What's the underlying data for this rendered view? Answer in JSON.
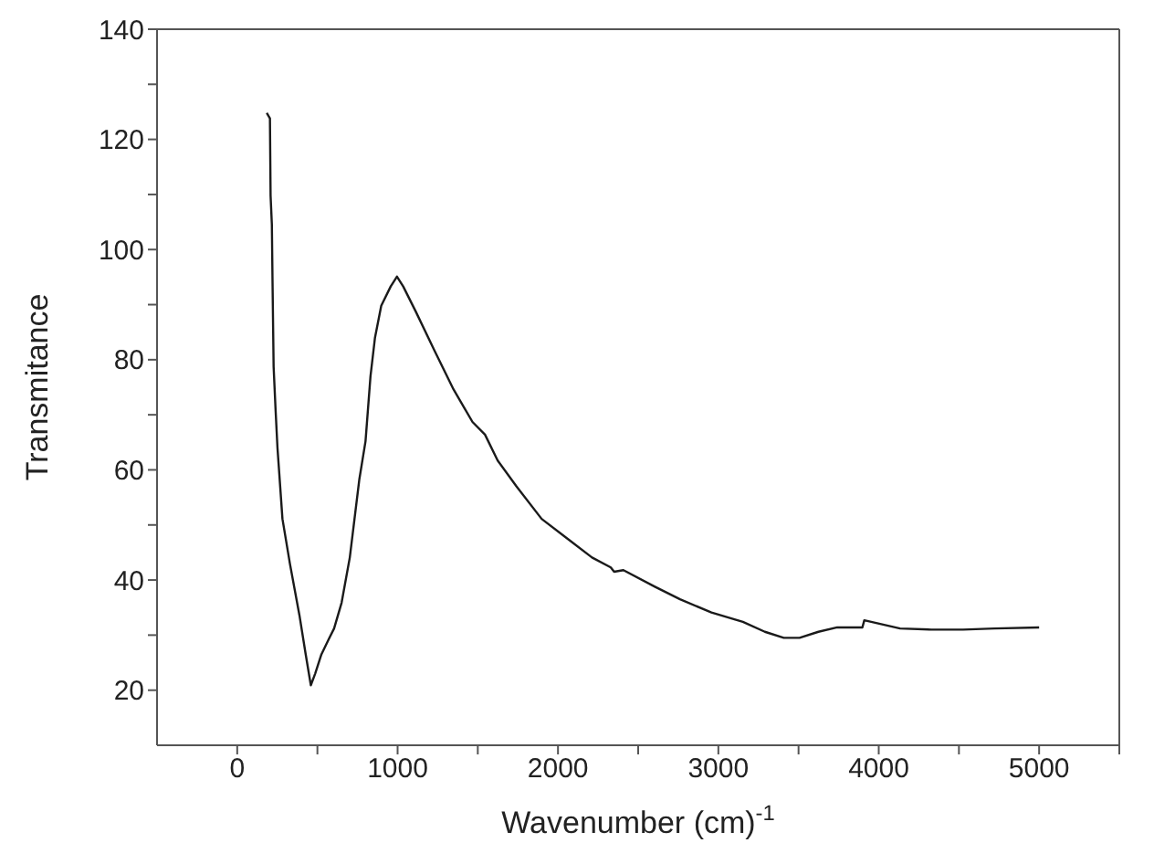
{
  "chart_data": {
    "type": "line",
    "xlabel": "Wavenumber (cm)$^{-1}$",
    "ylabel": "Transmitance",
    "x": [
      184,
      204,
      208,
      216,
      220,
      227,
      239,
      251,
      282,
      329,
      388,
      427,
      459,
      486,
      525,
      573,
      604,
      651,
      702,
      761,
      800,
      831,
      859,
      898,
      957,
      996,
      1035,
      1114,
      1231,
      1349,
      1467,
      1545,
      1624,
      1741,
      1898,
      2055,
      2212,
      2329,
      2350,
      2408,
      2604,
      2761,
      2957,
      3153,
      3290,
      3408,
      3506,
      3624,
      3741,
      3898,
      3910,
      4133,
      4329,
      4525,
      4722,
      5000
    ],
    "series": [
      {
        "color": "#1a1a1a",
        "values": [
          124.8,
          123.8,
          109.8,
          104.5,
          94.5,
          78.7,
          71,
          64,
          51.1,
          42.9,
          33.6,
          26.5,
          20.9,
          23,
          26.5,
          29.4,
          31.2,
          35.9,
          44.1,
          58.2,
          65.2,
          77,
          84,
          89.8,
          93.3,
          95.1,
          93.3,
          88.7,
          81.6,
          74.6,
          68.7,
          66.4,
          61.7,
          57,
          51.1,
          47.6,
          44.1,
          42.3,
          41.5,
          41.8,
          38.8,
          36.5,
          34.1,
          32.4,
          30.6,
          29.5,
          29.5,
          30.6,
          31.4,
          31.4,
          32.7,
          31.2,
          31,
          31,
          31.2,
          31.4
        ]
      }
    ],
    "xlim": [
      -500,
      5500
    ],
    "xticks": [
      0,
      {
        "value": 500,
        "label": null
      },
      1000,
      {
        "value": 1500,
        "label": null
      },
      2000,
      {
        "value": 2500,
        "label": null
      },
      3000,
      {
        "value": 3500,
        "label": null
      },
      4000,
      {
        "value": 4500,
        "label": null
      },
      5000,
      {
        "value": 5500,
        "label": null
      }
    ],
    "ylim": [
      10,
      140
    ],
    "yticks": [
      20,
      {
        "value": 30,
        "label": null
      },
      40,
      {
        "value": 50,
        "label": null
      },
      60,
      {
        "value": 70,
        "label": null
      },
      80,
      {
        "value": 90,
        "label": null
      },
      100,
      {
        "value": 110,
        "label": null
      },
      120,
      {
        "value": 130,
        "label": null
      },
      140
    ],
    "grid": false,
    "legend": false,
    "marker": "none",
    "line_style": "solid"
  }
}
